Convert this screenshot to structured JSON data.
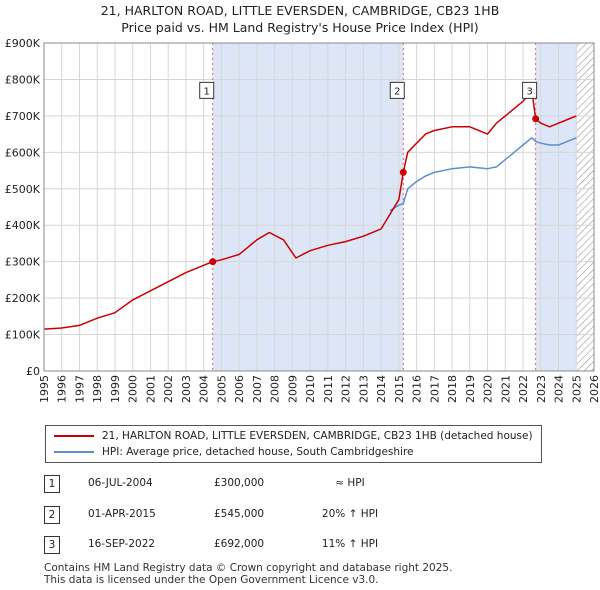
{
  "title_line1": "21, HARLTON ROAD, LITTLE EVERSDEN, CAMBRIDGE, CB23 1HB",
  "title_line2": "Price paid vs. HM Land Registry's House Price Index (HPI)",
  "colors": {
    "property": "#cc0000",
    "hpi": "#5b8fd0",
    "shade": "#dde6f7",
    "vline": "#e06060"
  },
  "chart_data": {
    "type": "line",
    "xlim": [
      1995,
      2026
    ],
    "ylim": [
      0,
      900000
    ],
    "y_ticks": [
      0,
      100000,
      200000,
      300000,
      400000,
      500000,
      600000,
      700000,
      800000,
      900000
    ],
    "y_tick_labels": [
      "£0",
      "£100K",
      "£200K",
      "£300K",
      "£400K",
      "£500K",
      "£600K",
      "£700K",
      "£800K",
      "£900K"
    ],
    "x_ticks": [
      1995,
      1996,
      1997,
      1998,
      1999,
      2000,
      2001,
      2002,
      2003,
      2004,
      2005,
      2006,
      2007,
      2008,
      2009,
      2010,
      2011,
      2012,
      2013,
      2014,
      2015,
      2016,
      2017,
      2018,
      2019,
      2020,
      2021,
      2022,
      2023,
      2024,
      2025,
      2026
    ],
    "x_tick_labels": [
      "1995",
      "1996",
      "1997",
      "1998",
      "1999",
      "2000",
      "2001",
      "2002",
      "2003",
      "2004",
      "2005",
      "2006",
      "2007",
      "2008",
      "2009",
      "2010",
      "2011",
      "2012",
      "2013",
      "2014",
      "2015",
      "2016",
      "2017",
      "2018",
      "2019",
      "2020",
      "2021",
      "2022",
      "2023",
      "2024",
      "2025",
      "2026"
    ],
    "shaded_ranges": [
      [
        2004.51,
        2015.25
      ],
      [
        2022.71,
        2025.0
      ]
    ],
    "hatched_from": 2025.0,
    "series": [
      {
        "name": "21, HARLTON ROAD, LITTLE EVERSDEN, CAMBRIDGE, CB23 1HB (detached house)",
        "x": [
          1995.0,
          1996.0,
          1997.0,
          1998.0,
          1999.0,
          2000.0,
          2001.0,
          2002.0,
          2003.0,
          2004.0,
          2004.51,
          2005.0,
          2006.0,
          2007.0,
          2007.7,
          2008.5,
          2009.2,
          2010.0,
          2011.0,
          2012.0,
          2013.0,
          2014.0,
          2015.0,
          2015.25,
          2015.5,
          2016.0,
          2016.5,
          2017.0,
          2018.0,
          2019.0,
          2020.0,
          2020.5,
          2021.0,
          2021.5,
          2022.0,
          2022.5,
          2022.71,
          2023.0,
          2023.5,
          2024.0,
          2024.5,
          2025.0
        ],
        "y": [
          115000,
          118000,
          125000,
          145000,
          160000,
          195000,
          220000,
          245000,
          270000,
          290000,
          300000,
          305000,
          320000,
          360000,
          380000,
          360000,
          310000,
          330000,
          345000,
          355000,
          370000,
          390000,
          470000,
          545000,
          600000,
          625000,
          650000,
          660000,
          670000,
          670000,
          650000,
          680000,
          700000,
          720000,
          740000,
          770000,
          692000,
          680000,
          670000,
          680000,
          690000,
          700000
        ]
      },
      {
        "name": "HPI: Average price, detached house, South Cambridgeshire",
        "x": [
          2014.5,
          2015.0,
          2015.25,
          2015.5,
          2016.0,
          2016.5,
          2017.0,
          2018.0,
          2019.0,
          2020.0,
          2020.5,
          2021.0,
          2021.5,
          2022.0,
          2022.5,
          2022.71,
          2023.0,
          2023.5,
          2024.0,
          2024.5,
          2025.0
        ],
        "y": [
          440000,
          455000,
          460000,
          500000,
          520000,
          535000,
          545000,
          555000,
          560000,
          555000,
          560000,
          580000,
          600000,
          620000,
          640000,
          630000,
          625000,
          620000,
          620000,
          630000,
          640000
        ]
      }
    ],
    "sales": [
      {
        "label": "1",
        "x": 2004.51,
        "y": 300000
      },
      {
        "label": "2",
        "x": 2015.25,
        "y": 545000
      },
      {
        "label": "3",
        "x": 2022.71,
        "y": 692000
      }
    ],
    "marker_label_y": 770000
  },
  "legend": {
    "property_label": "21, HARLTON ROAD, LITTLE EVERSDEN, CAMBRIDGE, CB23 1HB (detached house)",
    "hpi_label": "HPI: Average price, detached house, South Cambridgeshire"
  },
  "sales_table": [
    {
      "num": "1",
      "date": "06-JUL-2004",
      "price": "£300,000",
      "hpi": "≈ HPI"
    },
    {
      "num": "2",
      "date": "01-APR-2015",
      "price": "£545,000",
      "hpi": "20% ↑ HPI"
    },
    {
      "num": "3",
      "date": "16-SEP-2022",
      "price": "£692,000",
      "hpi": "11% ↑ HPI"
    }
  ],
  "footer_line1": "Contains HM Land Registry data © Crown copyright and database right 2025.",
  "footer_line2": "This data is licensed under the Open Government Licence v3.0."
}
